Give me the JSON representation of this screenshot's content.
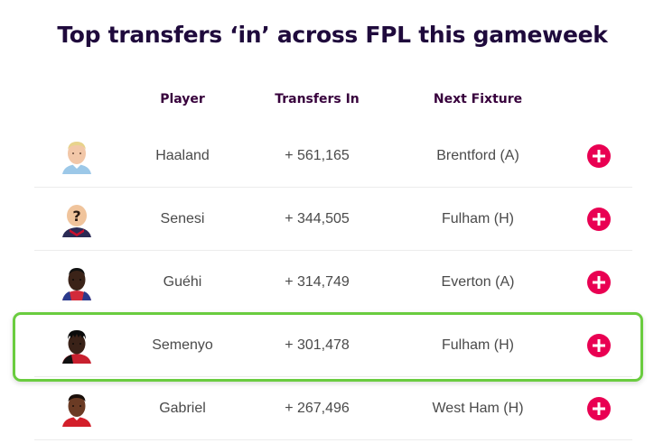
{
  "title": "Top transfers ‘in’ across FPL this gameweek",
  "columns": {
    "player": "Player",
    "transfers_in": "Transfers In",
    "next_fixture": "Next Fixture"
  },
  "rows": [
    {
      "player": "Haaland",
      "transfers_in": "+ 561,165",
      "next_fixture": "Brentford (A)",
      "avatar": "haaland-avatar-icon"
    },
    {
      "player": "Senesi",
      "transfers_in": "+ 344,505",
      "next_fixture": "Fulham (H)",
      "avatar": "placeholder-question-avatar-icon"
    },
    {
      "player": "Guéhi",
      "transfers_in": "+ 314,749",
      "next_fixture": "Everton (A)",
      "avatar": "guehi-avatar-icon"
    },
    {
      "player": "Semenyo",
      "transfers_in": "+ 301,478",
      "next_fixture": "Fulham (H)",
      "avatar": "semenyo-avatar-icon",
      "highlighted": true
    },
    {
      "player": "Gabriel",
      "transfers_in": "+ 267,496",
      "next_fixture": "West Ham (H)",
      "avatar": "gabriel-avatar-icon"
    }
  ],
  "add_button_icon": "plus-circle-icon",
  "colors": {
    "title": "#1f0a3c",
    "header": "#37003c",
    "add_button": "#e90052",
    "highlight_border": "#6acc3f",
    "row_divider": "#ececec"
  }
}
